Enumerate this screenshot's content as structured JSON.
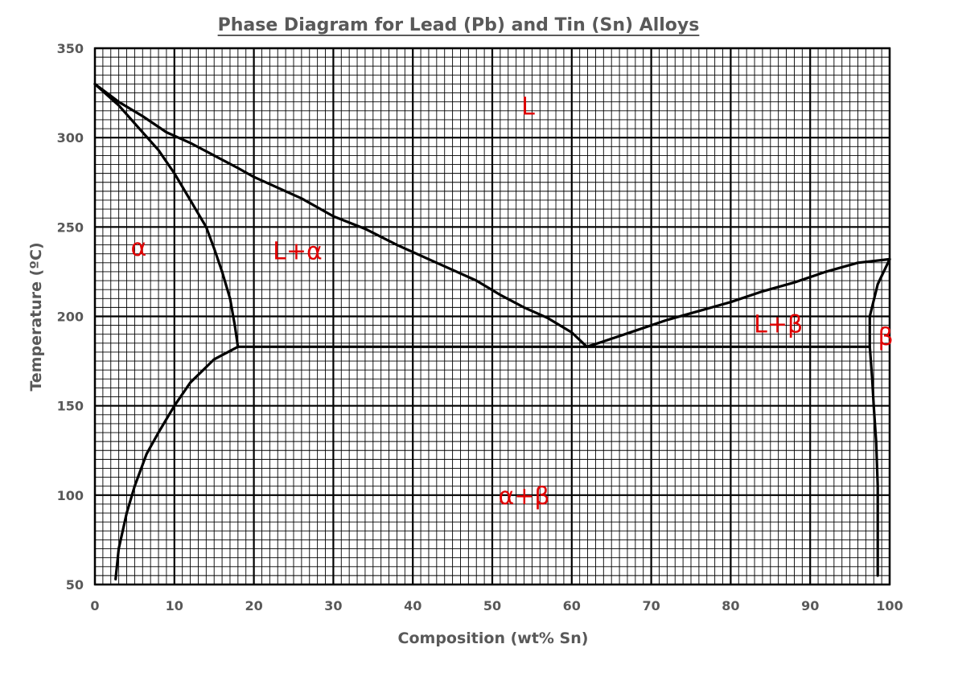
{
  "chart_data": {
    "type": "line",
    "title": "Phase Diagram for Lead (Pb) and Tin (Sn) Alloys",
    "xlabel": "Composition   (wt% Sn)",
    "ylabel": "Temperature  (ºC)",
    "xlim": [
      0,
      100
    ],
    "ylim": [
      50,
      350
    ],
    "x_ticks": [
      "0",
      "10",
      "20",
      "30",
      "40",
      "50",
      "60",
      "70",
      "80",
      "90",
      "100"
    ],
    "y_ticks": [
      "50",
      "100",
      "150",
      "200",
      "250",
      "300",
      "350"
    ],
    "grid": true,
    "series": [
      {
        "key": "liquidus-left",
        "points": [
          [
            0,
            330
          ],
          [
            3,
            320
          ],
          [
            6,
            312
          ],
          [
            9,
            303
          ],
          [
            12,
            297
          ],
          [
            15,
            290
          ],
          [
            18,
            283
          ],
          [
            20,
            278
          ],
          [
            23,
            272
          ],
          [
            26,
            266
          ],
          [
            30,
            256
          ],
          [
            34,
            249
          ],
          [
            38,
            240
          ],
          [
            42,
            232
          ],
          [
            45,
            226
          ],
          [
            48,
            220
          ],
          [
            51,
            212
          ],
          [
            54,
            205
          ],
          [
            57,
            199
          ],
          [
            60,
            191
          ],
          [
            61.9,
            183
          ]
        ]
      },
      {
        "key": "liquidus-right",
        "points": [
          [
            61.9,
            183
          ],
          [
            64,
            186
          ],
          [
            68,
            192
          ],
          [
            72,
            198
          ],
          [
            76,
            203
          ],
          [
            80,
            208
          ],
          [
            84,
            214
          ],
          [
            88,
            219
          ],
          [
            92,
            225
          ],
          [
            96,
            230
          ],
          [
            100,
            232
          ]
        ]
      },
      {
        "key": "solidus-left",
        "points": [
          [
            0,
            330
          ],
          [
            3,
            318
          ],
          [
            5,
            308
          ],
          [
            8,
            293
          ],
          [
            10,
            280
          ],
          [
            12,
            265
          ],
          [
            14,
            250
          ],
          [
            15,
            238
          ],
          [
            16,
            225
          ],
          [
            17,
            210
          ],
          [
            17.6,
            195
          ],
          [
            18,
            183
          ]
        ]
      },
      {
        "key": "solvus-left",
        "points": [
          [
            18,
            183
          ],
          [
            15,
            176
          ],
          [
            12,
            163
          ],
          [
            10,
            150
          ],
          [
            8,
            135
          ],
          [
            6.5,
            123
          ],
          [
            5,
            105
          ],
          [
            4,
            90
          ],
          [
            3,
            70
          ],
          [
            2.6,
            53
          ]
        ]
      },
      {
        "key": "eutectic-isotherm",
        "points": [
          [
            18,
            183
          ],
          [
            97.5,
            183
          ]
        ]
      },
      {
        "key": "solidus-right",
        "points": [
          [
            100,
            232
          ],
          [
            98.5,
            218
          ],
          [
            97.5,
            200
          ],
          [
            97.5,
            183
          ]
        ]
      },
      {
        "key": "solvus-right",
        "points": [
          [
            97.5,
            183
          ],
          [
            97.8,
            165
          ],
          [
            98,
            150
          ],
          [
            98.3,
            130
          ],
          [
            98.5,
            105
          ],
          [
            98.5,
            80
          ],
          [
            98.5,
            55
          ]
        ]
      }
    ],
    "annotations": [
      {
        "text": "L",
        "x": 54.5,
        "y": 313
      },
      {
        "text": "α",
        "x": 5.5,
        "y": 234
      },
      {
        "text": "L+α",
        "x": 25.5,
        "y": 232
      },
      {
        "text": "L+β",
        "x": 86,
        "y": 191
      },
      {
        "text": "β",
        "x": 99.5,
        "y": 184
      },
      {
        "text": "α+β",
        "x": 54,
        "y": 95
      }
    ],
    "colors": {
      "grid": "#000000",
      "curves": "#000000",
      "labels": "#e00000",
      "text": "#595959"
    }
  }
}
